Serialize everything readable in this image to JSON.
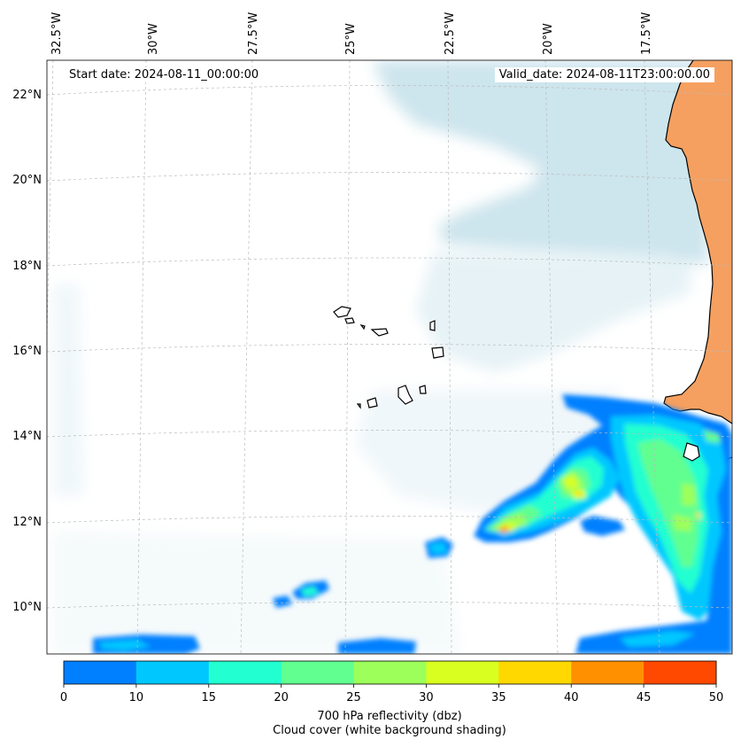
{
  "header": {
    "start_date": "Start date: 2024-08-11_00:00:00",
    "valid_date": "Valid_date: 2024-08-11T23:00:00.00"
  },
  "lon_labels": [
    "32.5°W",
    "30°W",
    "27.5°W",
    "25°W",
    "22.5°W",
    "20°W",
    "17.5°W"
  ],
  "lat_labels": [
    "22°N",
    "20°N",
    "18°N",
    "16°N",
    "14°N",
    "12°N",
    "10°N"
  ],
  "colorbar": {
    "ticks": [
      "0",
      "10",
      "15",
      "20",
      "25",
      "30",
      "35",
      "40",
      "45",
      "50"
    ],
    "colors": [
      "#0080ff",
      "#00c8ff",
      "#22ffd0",
      "#60ff90",
      "#9cff5a",
      "#d8ff20",
      "#ffd800",
      "#ff9000",
      "#ff4800"
    ],
    "label_line1": "700 hPa reflectivity (dbz)",
    "label_line2": "Cloud cover (white background shading)"
  },
  "colors": {
    "land": "#f5a060",
    "cloud": "#c4e0ea",
    "coast": "#000000"
  }
}
